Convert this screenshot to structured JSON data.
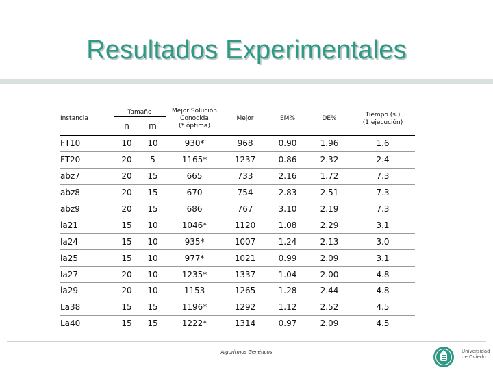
{
  "slide": {
    "title": "Resultados Experimentales",
    "footer": "Algoritmos Genéticos",
    "logo_text": [
      "Universidad",
      "de Oviedo"
    ],
    "colors": {
      "title": "#2e9a86",
      "band": "#dadfe0",
      "logo": "#2e9a86"
    }
  },
  "table": {
    "header": {
      "instancia": "Instancia",
      "tamano": "Tamaño",
      "n": "n",
      "m": "m",
      "mejor_conocida": [
        "Mejor Solución",
        "Conocida",
        "(* óptima)"
      ],
      "mejor": "Mejor",
      "em": "EM%",
      "de": "DE%",
      "tiempo": [
        "Tiempo (s.)",
        "(1 ejecución)"
      ]
    },
    "rows": [
      [
        "FT10",
        "10",
        "10",
        "930*",
        "968",
        "0.90",
        "1.96",
        "1.6"
      ],
      [
        "FT20",
        "20",
        "5",
        "1165*",
        "1237",
        "0.86",
        "2.32",
        "2.4"
      ],
      [
        "abz7",
        "20",
        "15",
        "665",
        "733",
        "2.16",
        "1.72",
        "7.3"
      ],
      [
        "abz8",
        "20",
        "15",
        "670",
        "754",
        "2.83",
        "2.51",
        "7.3"
      ],
      [
        "abz9",
        "20",
        "15",
        "686",
        "767",
        "3.10",
        "2.19",
        "7.3"
      ],
      [
        "la21",
        "15",
        "10",
        "1046*",
        "1120",
        "1.08",
        "2.29",
        "3.1"
      ],
      [
        "la24",
        "15",
        "10",
        "935*",
        "1007",
        "1.24",
        "2.13",
        "3.0"
      ],
      [
        "la25",
        "15",
        "10",
        "977*",
        "1021",
        "0.99",
        "2.09",
        "3.1"
      ],
      [
        "la27",
        "20",
        "10",
        "1235*",
        "1337",
        "1.04",
        "2.00",
        "4.8"
      ],
      [
        "la29",
        "20",
        "10",
        "1153",
        "1265",
        "1.28",
        "2.44",
        "4.8"
      ],
      [
        "La38",
        "15",
        "15",
        "1196*",
        "1292",
        "1.12",
        "2.52",
        "4.5"
      ],
      [
        "La40",
        "15",
        "15",
        "1222*",
        "1314",
        "0.97",
        "2.09",
        "4.5"
      ]
    ]
  }
}
